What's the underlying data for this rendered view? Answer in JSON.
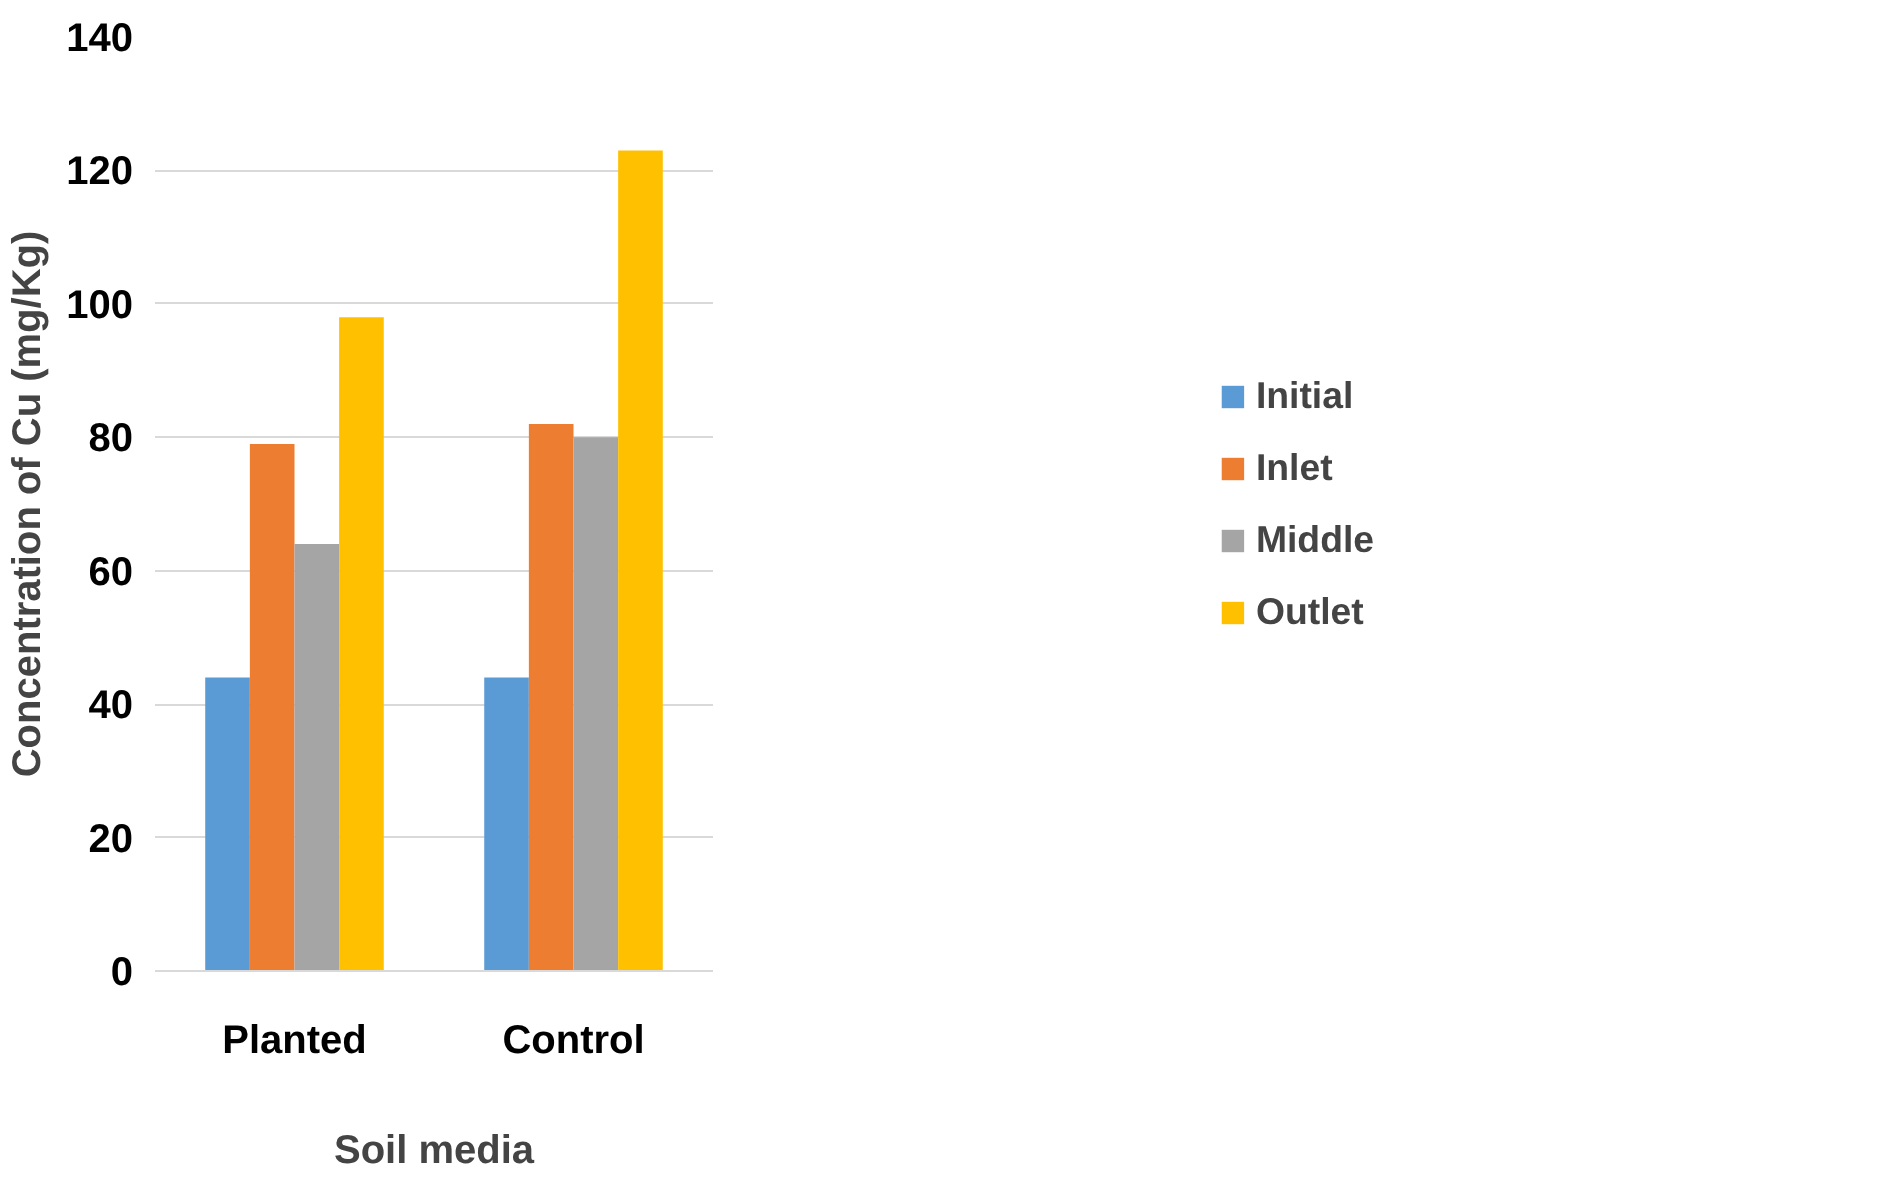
{
  "chart_data": {
    "type": "bar",
    "xlabel": "Soil media",
    "ylabel": "Concentration of Cu (mg/Kg)",
    "categories": [
      "Planted",
      "Control"
    ],
    "series": [
      {
        "name": "Initial",
        "color": "#5b9bd5",
        "values": [
          44,
          44
        ]
      },
      {
        "name": "Inlet",
        "color": "#ed7d31",
        "values": [
          79,
          82
        ]
      },
      {
        "name": "Middle",
        "color": "#a5a5a5",
        "values": [
          64,
          80
        ]
      },
      {
        "name": "Outlet",
        "color": "#ffc000",
        "values": [
          98,
          123
        ]
      }
    ],
    "ylim": [
      0,
      140
    ],
    "yticks": [
      0,
      20,
      40,
      60,
      80,
      100,
      120,
      140
    ],
    "grid": "y",
    "legend": "right"
  }
}
